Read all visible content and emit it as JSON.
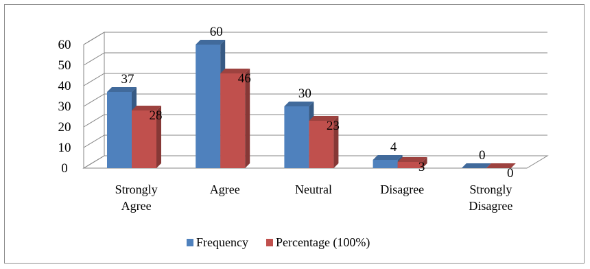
{
  "chart_data": {
    "type": "bar",
    "style": "3d-clustered-column",
    "categories": [
      [
        "Strongly",
        "Agree"
      ],
      [
        "Agree"
      ],
      [
        "Neutral"
      ],
      [
        "Disagree"
      ],
      [
        "Strongly",
        "Disagree"
      ]
    ],
    "series": [
      {
        "name": "Frequency",
        "values": [
          37,
          60,
          30,
          4,
          0
        ],
        "color": "#4f81bd"
      },
      {
        "name": "Percentage (100%)",
        "values": [
          28,
          46,
          23,
          3,
          0
        ],
        "color": "#c0504d"
      }
    ],
    "ylim": [
      0,
      60
    ],
    "yticks": [
      "0",
      "10",
      "20",
      "30",
      "40",
      "50",
      "60"
    ],
    "grid": true,
    "legend_position": "bottom",
    "title": "",
    "xlabel": "",
    "ylabel": ""
  }
}
